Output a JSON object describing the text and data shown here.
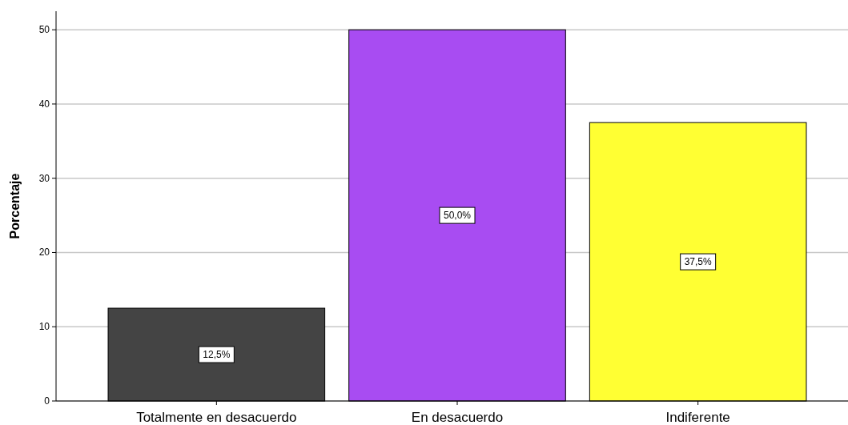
{
  "chart_data": {
    "type": "bar",
    "ylabel": "Porcentaje",
    "categories": [
      "Totalmente en desacuerdo",
      "En desacuerdo",
      "Indiferente"
    ],
    "values": [
      12.5,
      50.0,
      37.5
    ],
    "colors": [
      "#444444",
      "#a84cf2",
      "#ffff33"
    ],
    "value_labels": [
      "12,5%",
      "50,0%",
      "37,5%"
    ],
    "ylim": [
      0,
      52.5
    ],
    "yticks": [
      0,
      10,
      20,
      30,
      40,
      50
    ],
    "grid": "y"
  }
}
